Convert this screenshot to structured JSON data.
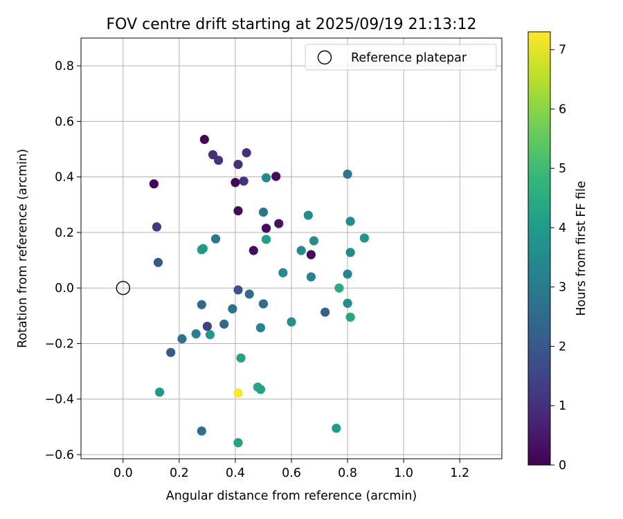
{
  "chart_data": {
    "type": "scatter",
    "title": "FOV centre drift starting at 2025/09/19 21:13:12",
    "xlabel": "Angular distance from reference (arcmin)",
    "ylabel": "Rotation from reference (arcmin)",
    "xlim": [
      -0.15,
      1.35
    ],
    "ylim": [
      -0.615,
      0.9
    ],
    "xticks": [
      0.0,
      0.2,
      0.4,
      0.6,
      0.8,
      1.0,
      1.2
    ],
    "xtick_labels": [
      "0.0",
      "0.2",
      "0.4",
      "0.6",
      "0.8",
      "1.0",
      "1.2"
    ],
    "yticks": [
      -0.6,
      -0.4,
      -0.2,
      0.0,
      0.2,
      0.4,
      0.6,
      0.8
    ],
    "ytick_labels": [
      "−0.6",
      "−0.4",
      "−0.2",
      "0.0",
      "0.2",
      "0.4",
      "0.6",
      "0.8"
    ],
    "grid": true,
    "legend": {
      "position": "top-right",
      "entries": [
        "Reference platepar"
      ]
    },
    "reference_point": {
      "x": 0.0,
      "y": 0.0
    },
    "colorbar": {
      "label": "Hours from first FF file",
      "range": [
        0,
        7.3
      ],
      "ticks": [
        0,
        1,
        2,
        3,
        4,
        5,
        6,
        7
      ],
      "tick_labels": [
        "0",
        "1",
        "2",
        "3",
        "4",
        "5",
        "6",
        "7"
      ],
      "colormap": [
        "#440154",
        "#482878",
        "#3e4989",
        "#31688e",
        "#26828e",
        "#1f9e89",
        "#35b779",
        "#6ece58",
        "#b5de2b",
        "#fde725"
      ]
    },
    "points": [
      {
        "x": 0.29,
        "y": 0.535,
        "hours": 0.1
      },
      {
        "x": 0.32,
        "y": 0.48,
        "hours": 1.0
      },
      {
        "x": 0.34,
        "y": 0.46,
        "hours": 1.1
      },
      {
        "x": 0.44,
        "y": 0.487,
        "hours": 1.0
      },
      {
        "x": 0.41,
        "y": 0.445,
        "hours": 1.0
      },
      {
        "x": 0.11,
        "y": 0.375,
        "hours": 0.1
      },
      {
        "x": 0.4,
        "y": 0.38,
        "hours": 0.1
      },
      {
        "x": 0.43,
        "y": 0.385,
        "hours": 1.1
      },
      {
        "x": 0.545,
        "y": 0.402,
        "hours": 0.2
      },
      {
        "x": 0.51,
        "y": 0.397,
        "hours": 3.5
      },
      {
        "x": 0.8,
        "y": 0.41,
        "hours": 2.9
      },
      {
        "x": 0.41,
        "y": 0.278,
        "hours": 0.2
      },
      {
        "x": 0.5,
        "y": 0.273,
        "hours": 2.8
      },
      {
        "x": 0.66,
        "y": 0.262,
        "hours": 3.5
      },
      {
        "x": 0.81,
        "y": 0.24,
        "hours": 3.6
      },
      {
        "x": 0.12,
        "y": 0.22,
        "hours": 1.2
      },
      {
        "x": 0.51,
        "y": 0.215,
        "hours": 0.3
      },
      {
        "x": 0.555,
        "y": 0.232,
        "hours": 0.4
      },
      {
        "x": 0.33,
        "y": 0.177,
        "hours": 2.9
      },
      {
        "x": 0.51,
        "y": 0.175,
        "hours": 4.1
      },
      {
        "x": 0.68,
        "y": 0.17,
        "hours": 3.6
      },
      {
        "x": 0.86,
        "y": 0.18,
        "hours": 3.8
      },
      {
        "x": 0.28,
        "y": 0.138,
        "hours": 4.0
      },
      {
        "x": 0.285,
        "y": 0.142,
        "hours": 3.9
      },
      {
        "x": 0.465,
        "y": 0.135,
        "hours": 0.3
      },
      {
        "x": 0.635,
        "y": 0.135,
        "hours": 3.5
      },
      {
        "x": 0.67,
        "y": 0.12,
        "hours": 0.2
      },
      {
        "x": 0.81,
        "y": 0.128,
        "hours": 3.5
      },
      {
        "x": 0.125,
        "y": 0.092,
        "hours": 2.0
      },
      {
        "x": 0.57,
        "y": 0.055,
        "hours": 3.5
      },
      {
        "x": 0.67,
        "y": 0.04,
        "hours": 3.3
      },
      {
        "x": 0.8,
        "y": 0.05,
        "hours": 3.4
      },
      {
        "x": 0.77,
        "y": 0.0,
        "hours": 4.5
      },
      {
        "x": 0.41,
        "y": -0.007,
        "hours": 1.9
      },
      {
        "x": 0.45,
        "y": -0.022,
        "hours": 2.5
      },
      {
        "x": 0.28,
        "y": -0.06,
        "hours": 2.5
      },
      {
        "x": 0.39,
        "y": -0.075,
        "hours": 2.7
      },
      {
        "x": 0.5,
        "y": -0.057,
        "hours": 2.6
      },
      {
        "x": 0.8,
        "y": -0.055,
        "hours": 3.6
      },
      {
        "x": 0.72,
        "y": -0.087,
        "hours": 2.3
      },
      {
        "x": 0.81,
        "y": -0.105,
        "hours": 4.3
      },
      {
        "x": 0.3,
        "y": -0.138,
        "hours": 1.4
      },
      {
        "x": 0.36,
        "y": -0.13,
        "hours": 2.4
      },
      {
        "x": 0.6,
        "y": -0.122,
        "hours": 3.7
      },
      {
        "x": 0.49,
        "y": -0.143,
        "hours": 3.4
      },
      {
        "x": 0.26,
        "y": -0.165,
        "hours": 3.2
      },
      {
        "x": 0.31,
        "y": -0.168,
        "hours": 4.0
      },
      {
        "x": 0.21,
        "y": -0.183,
        "hours": 2.8
      },
      {
        "x": 0.17,
        "y": -0.232,
        "hours": 2.1
      },
      {
        "x": 0.42,
        "y": -0.252,
        "hours": 4.2
      },
      {
        "x": 0.13,
        "y": -0.375,
        "hours": 4.0
      },
      {
        "x": 0.41,
        "y": -0.378,
        "hours": 7.3
      },
      {
        "x": 0.48,
        "y": -0.357,
        "hours": 4.3
      },
      {
        "x": 0.49,
        "y": -0.365,
        "hours": 4.2
      },
      {
        "x": 0.28,
        "y": -0.515,
        "hours": 2.7
      },
      {
        "x": 0.76,
        "y": -0.505,
        "hours": 4.1
      },
      {
        "x": 0.41,
        "y": -0.557,
        "hours": 4.2
      }
    ]
  }
}
